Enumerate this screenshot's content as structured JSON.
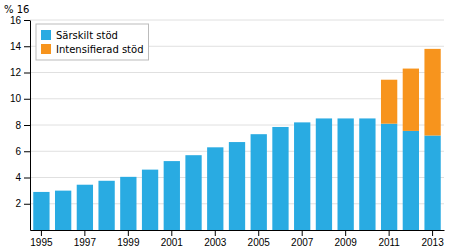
{
  "chart_data": {
    "type": "bar",
    "stacked": true,
    "annotation": "% 16",
    "categories": [
      "1995",
      null,
      "1997",
      null,
      "1999",
      null,
      "2001",
      null,
      "2003",
      null,
      "2005",
      null,
      "2007",
      null,
      "2009",
      null,
      "2011",
      null,
      "2013"
    ],
    "series": [
      {
        "name": "Särskilt stöd",
        "color": "#29abe2",
        "values": [
          2.9,
          3.0,
          3.45,
          3.75,
          4.05,
          4.6,
          5.25,
          5.7,
          6.3,
          6.7,
          7.3,
          7.85,
          8.2,
          8.5,
          8.5,
          8.5,
          8.1,
          7.55,
          7.2
        ]
      },
      {
        "name": "Intensifierad stöd",
        "color": "#f7941d",
        "values": [
          0,
          0,
          0,
          0,
          0,
          0,
          0,
          0,
          0,
          0,
          0,
          0,
          0,
          0,
          0,
          0,
          3.35,
          4.75,
          6.6
        ]
      }
    ],
    "ylim": [
      0,
      16
    ],
    "yticks": [
      2,
      4,
      6,
      8,
      10,
      12,
      14,
      16
    ],
    "grid": true,
    "legend": "upper left"
  }
}
